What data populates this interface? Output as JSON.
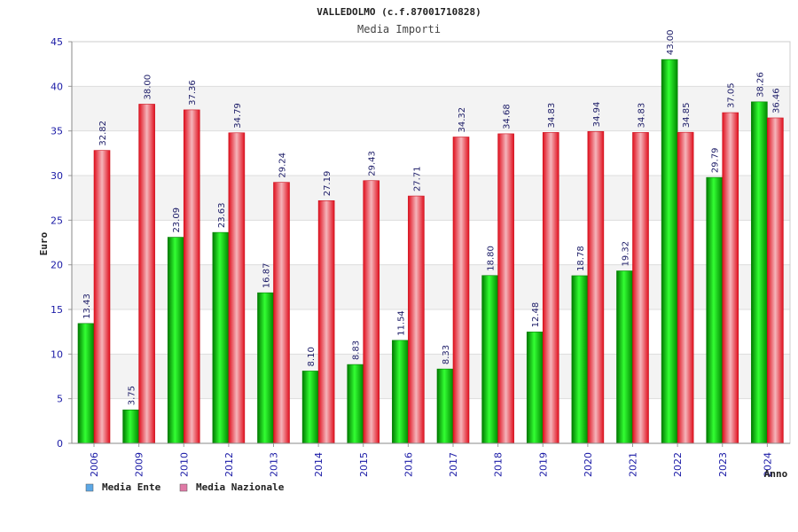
{
  "chart_data": {
    "type": "bar",
    "title": "VALLEDOLMO (c.f.87001710828)",
    "subtitle": "Media Importi",
    "xlabel": "Anno",
    "ylabel": "Euro",
    "ylim": [
      0,
      45
    ],
    "yticks": [
      "0",
      "5",
      "10",
      "15",
      "20",
      "25",
      "30",
      "35",
      "40",
      "45"
    ],
    "grid": true,
    "legend_position": "bottom-left",
    "categories": [
      "2006",
      "2009",
      "2010",
      "2012",
      "2013",
      "2014",
      "2015",
      "2016",
      "2017",
      "2018",
      "2019",
      "2020",
      "2021",
      "2022",
      "2023",
      "2024"
    ],
    "series": [
      {
        "name": "Media Ente",
        "color": "#00cc00",
        "legend_color": "#5ca8e6",
        "values": [
          13.43,
          3.75,
          23.09,
          23.63,
          16.87,
          8.1,
          8.83,
          11.54,
          8.33,
          18.8,
          12.48,
          18.78,
          19.32,
          43.0,
          29.79,
          38.26
        ],
        "labels": [
          "13.43",
          "3.75",
          "23.09",
          "23.63",
          "16.87",
          "8.10",
          "8.83",
          "11.54",
          "8.33",
          "18.80",
          "12.48",
          "18.78",
          "19.32",
          "43.00",
          "29.79",
          "38.26"
        ]
      },
      {
        "name": "Media Nazionale",
        "color": "#ee1c2a",
        "legend_color": "#e07aa6",
        "values": [
          32.82,
          38.0,
          37.36,
          34.79,
          29.24,
          27.19,
          29.43,
          27.71,
          34.32,
          34.68,
          34.83,
          34.94,
          34.83,
          34.85,
          37.05,
          36.46
        ],
        "labels": [
          "32.82",
          "38.00",
          "37.36",
          "34.79",
          "29.24",
          "27.19",
          "29.43",
          "27.71",
          "34.32",
          "34.68",
          "34.83",
          "34.94",
          "34.83",
          "34.85",
          "37.05",
          "36.46"
        ]
      }
    ]
  }
}
